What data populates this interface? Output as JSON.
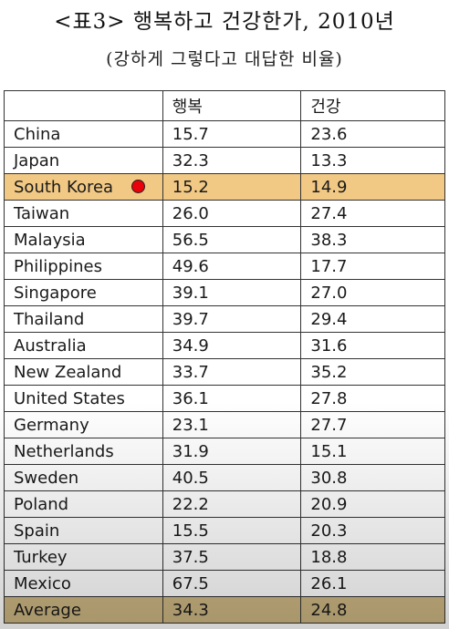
{
  "title": "<표3> 행복하고 건강한가, 2010년",
  "subtitle": "(강하게 그렇다고 대답한 비율)",
  "header": {
    "country": "",
    "happy": "행복",
    "healthy": "건강"
  },
  "highlight_color": "#f1c985",
  "average_color": "#cdb783",
  "marker": {
    "icon": "red-dot-icon",
    "color": "#e8000b"
  },
  "rows": [
    {
      "country": "China",
      "happy": "15.7",
      "healthy": "23.6"
    },
    {
      "country": "Japan",
      "happy": "32.3",
      "healthy": "13.3"
    },
    {
      "country": "South Korea",
      "happy": "15.2",
      "healthy": "14.9"
    },
    {
      "country": "Taiwan",
      "happy": "26.0",
      "healthy": "27.4"
    },
    {
      "country": "Malaysia",
      "happy": "56.5",
      "healthy": "38.3"
    },
    {
      "country": "Philippines",
      "happy": "49.6",
      "healthy": "17.7"
    },
    {
      "country": "Singapore",
      "happy": "39.1",
      "healthy": "27.0"
    },
    {
      "country": "Thailand",
      "happy": "39.7",
      "healthy": "29.4"
    },
    {
      "country": "Australia",
      "happy": "34.9",
      "healthy": "31.6"
    },
    {
      "country": "New Zealand",
      "happy": "33.7",
      "healthy": "35.2"
    },
    {
      "country": "United States",
      "happy": "36.1",
      "healthy": "27.8"
    },
    {
      "country": "Germany",
      "happy": "23.1",
      "healthy": "27.7"
    },
    {
      "country": "Netherlands",
      "happy": "31.9",
      "healthy": "15.1"
    },
    {
      "country": "Sweden",
      "happy": "40.5",
      "healthy": "30.8"
    },
    {
      "country": "Poland",
      "happy": "22.2",
      "healthy": "20.9"
    },
    {
      "country": "Spain",
      "happy": "15.5",
      "healthy": "20.3"
    },
    {
      "country": "Turkey",
      "happy": "37.5",
      "healthy": "18.8"
    },
    {
      "country": "Mexico",
      "happy": "67.5",
      "healthy": "26.1"
    }
  ],
  "average": {
    "country": "Average",
    "happy": "34.3",
    "healthy": "24.8"
  }
}
